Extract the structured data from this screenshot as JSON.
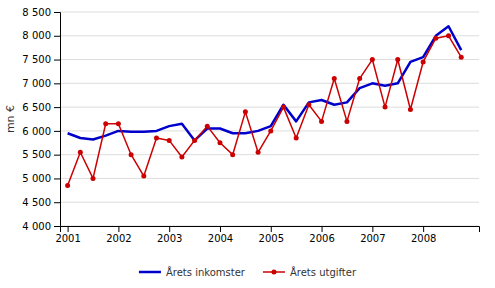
{
  "chart_data": {
    "type": "line",
    "ylabel": "mn €",
    "x": [
      2001.0,
      2001.25,
      2001.5,
      2001.75,
      2002.0,
      2002.25,
      2002.5,
      2002.75,
      2003.0,
      2003.25,
      2003.5,
      2003.75,
      2004.0,
      2004.25,
      2004.5,
      2004.75,
      2005.0,
      2005.25,
      2005.5,
      2005.75,
      2006.0,
      2006.25,
      2006.5,
      2006.75,
      2007.0,
      2007.25,
      2007.5,
      2007.75,
      2008.0,
      2008.25,
      2008.5,
      2008.75
    ],
    "series": [
      {
        "name": "Årets inkomster",
        "color": "#0000CC",
        "values": [
          5950,
          5850,
          5820,
          5900,
          6000,
          5980,
          5980,
          6000,
          6100,
          6150,
          5800,
          6050,
          6050,
          5950,
          5950,
          6000,
          6100,
          6550,
          6200,
          6600,
          6650,
          6550,
          6600,
          6900,
          7000,
          6950,
          7000,
          7450,
          7550,
          8000,
          8200,
          7700
        ]
      },
      {
        "name": "Årets utgifter",
        "color": "#CC0000",
        "marker": "circle",
        "values": [
          4850,
          5550,
          5000,
          6150,
          6150,
          5500,
          5050,
          5850,
          5800,
          5450,
          5800,
          6100,
          5750,
          5500,
          6400,
          5550,
          6000,
          6500,
          5850,
          6550,
          6200,
          7100,
          6200,
          7100,
          7500,
          6500,
          7500,
          6450,
          7450,
          7950,
          8000,
          7550
        ]
      }
    ],
    "xlim": [
      2000.85,
      2009.1
    ],
    "xticks": [
      2001,
      2002,
      2003,
      2004,
      2005,
      2006,
      2007,
      2008
    ],
    "ylim": [
      4000,
      8500
    ],
    "yticks": [
      {
        "value": 4000,
        "label": "4 000"
      },
      {
        "value": 4500,
        "label": "4 500"
      },
      {
        "value": 5000,
        "label": "5 000"
      },
      {
        "value": 5500,
        "label": "5 500"
      },
      {
        "value": 6000,
        "label": "6 000"
      },
      {
        "value": 6500,
        "label": "6 500"
      },
      {
        "value": 7000,
        "label": "7 000"
      },
      {
        "value": 7500,
        "label": "7 500"
      },
      {
        "value": 8000,
        "label": "8 000"
      },
      {
        "value": 8500,
        "label": "8 500"
      }
    ],
    "grid": true,
    "legend": "bottom"
  }
}
